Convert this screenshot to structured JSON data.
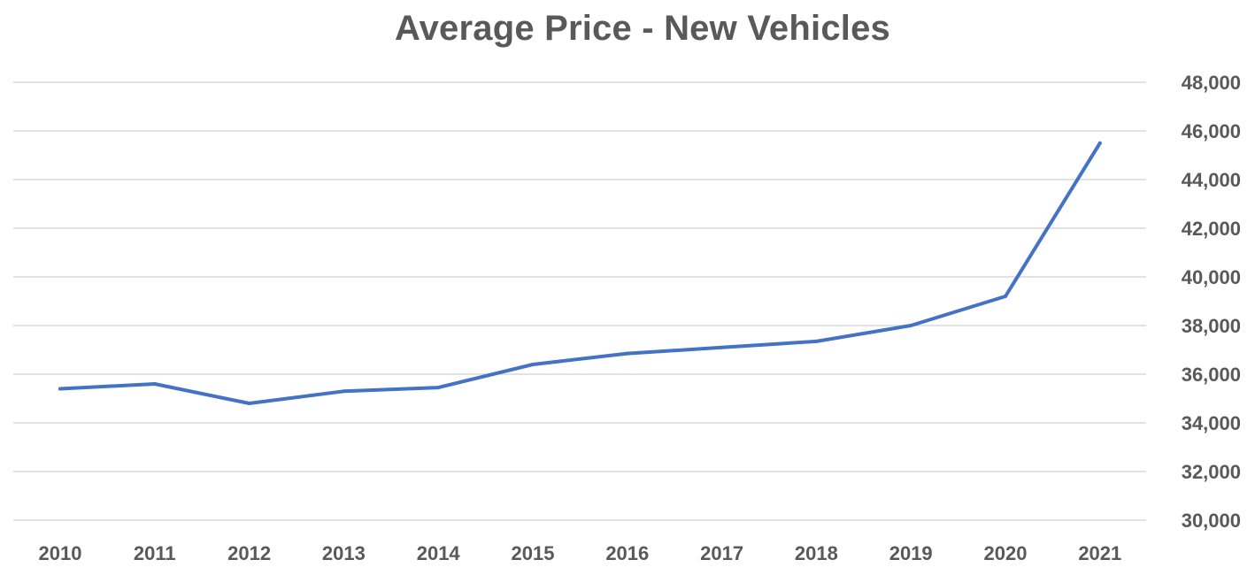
{
  "chart_data": {
    "type": "line",
    "title": "Average Price - New Vehicles",
    "xlabel": "",
    "ylabel": "",
    "categories": [
      "2010",
      "2011",
      "2012",
      "2013",
      "2014",
      "2015",
      "2016",
      "2017",
      "2018",
      "2019",
      "2020",
      "2021"
    ],
    "series": [
      {
        "values": [
          35400,
          35600,
          34800,
          35300,
          35450,
          36400,
          36850,
          37100,
          37350,
          38000,
          39200,
          45500
        ]
      }
    ],
    "ylim": [
      30000,
      48000
    ],
    "y_ticks": [
      "30,000",
      "32,000",
      "34,000",
      "36,000",
      "38,000",
      "40,000",
      "42,000",
      "44,000",
      "46,000",
      "48,000"
    ],
    "y_axis_position": "right",
    "grid": true,
    "legend": "none",
    "line_color": "#4472c4",
    "grid_color": "#d9d9d9",
    "text_color": "#595959"
  }
}
